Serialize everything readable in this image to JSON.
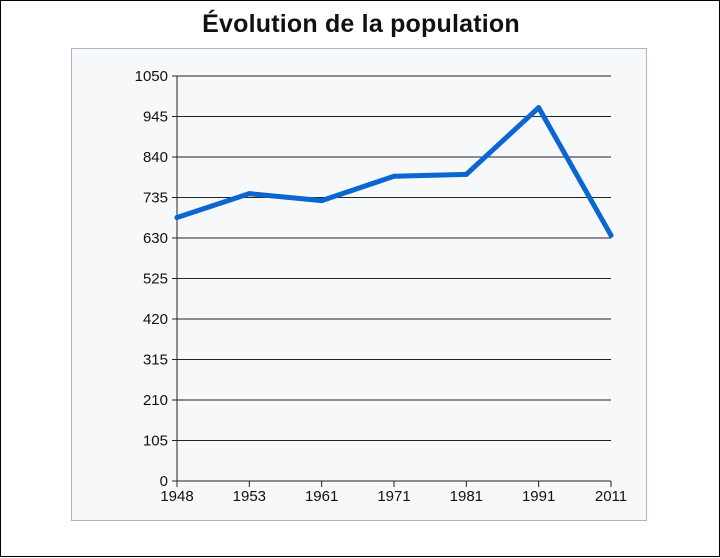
{
  "chart_data": {
    "type": "line",
    "title": "Évolution de la population",
    "xlabel": "",
    "ylabel": "",
    "categories": [
      "1948",
      "1953",
      "1961",
      "1971",
      "1981",
      "1991",
      "2011"
    ],
    "series": [
      {
        "values": [
          683,
          745,
          727,
          790,
          795,
          968,
          637
        ],
        "color": "#0a66d0"
      }
    ],
    "ylim": [
      0,
      1050
    ],
    "yticks": [
      "0",
      "105",
      "210",
      "315",
      "420",
      "525",
      "630",
      "735",
      "840",
      "945",
      "1050"
    ],
    "grid": "horizontal",
    "legend": "none"
  }
}
